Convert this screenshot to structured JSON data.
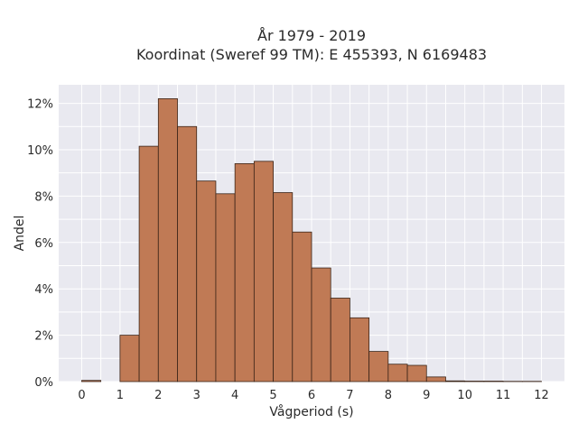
{
  "chart_data": {
    "type": "bar",
    "title_line1": "År 1979 - 2019",
    "title_line2": "Koordinat (Sweref 99 TM): E 455393, N 6169483",
    "xlabel": "Vågperiod (s)",
    "ylabel": "Andel",
    "bin_width": 0.5,
    "bins": [
      {
        "x0": 0.0,
        "value": 0.05
      },
      {
        "x0": 0.5,
        "value": 0.0
      },
      {
        "x0": 1.0,
        "value": 2.0
      },
      {
        "x0": 1.5,
        "value": 10.15
      },
      {
        "x0": 2.0,
        "value": 12.2
      },
      {
        "x0": 2.5,
        "value": 11.0
      },
      {
        "x0": 3.0,
        "value": 8.65
      },
      {
        "x0": 3.5,
        "value": 8.1
      },
      {
        "x0": 4.0,
        "value": 9.4
      },
      {
        "x0": 4.5,
        "value": 9.5
      },
      {
        "x0": 5.0,
        "value": 8.15
      },
      {
        "x0": 5.5,
        "value": 6.45
      },
      {
        "x0": 6.0,
        "value": 4.9
      },
      {
        "x0": 6.5,
        "value": 3.6
      },
      {
        "x0": 7.0,
        "value": 2.75
      },
      {
        "x0": 7.5,
        "value": 1.3
      },
      {
        "x0": 8.0,
        "value": 0.75
      },
      {
        "x0": 8.5,
        "value": 0.7
      },
      {
        "x0": 9.0,
        "value": 0.2
      },
      {
        "x0": 9.5,
        "value": 0.03
      },
      {
        "x0": 10.0,
        "value": 0.02
      },
      {
        "x0": 10.5,
        "value": 0.02
      },
      {
        "x0": 11.0,
        "value": 0.01
      },
      {
        "x0": 11.5,
        "value": 0.01
      }
    ],
    "x_ticks": [
      0,
      1,
      2,
      3,
      4,
      5,
      6,
      7,
      8,
      9,
      10,
      11,
      12
    ],
    "x_tick_labels": [
      "0",
      "1",
      "2",
      "3",
      "4",
      "5",
      "6",
      "7",
      "8",
      "9",
      "10",
      "11",
      "12"
    ],
    "y_ticks": [
      0,
      2,
      4,
      6,
      8,
      10,
      12
    ],
    "y_tick_labels": [
      "0%",
      "2%",
      "4%",
      "6%",
      "8%",
      "10%",
      "12%"
    ],
    "xlim": [
      -0.6,
      12.6
    ],
    "ylim": [
      0,
      12.8
    ],
    "grid": true,
    "colors": {
      "bar_fill": "#c07a55",
      "bar_edge": "#3a2418",
      "plot_bg": "#e9e9f0",
      "grid": "#ffffff"
    }
  }
}
